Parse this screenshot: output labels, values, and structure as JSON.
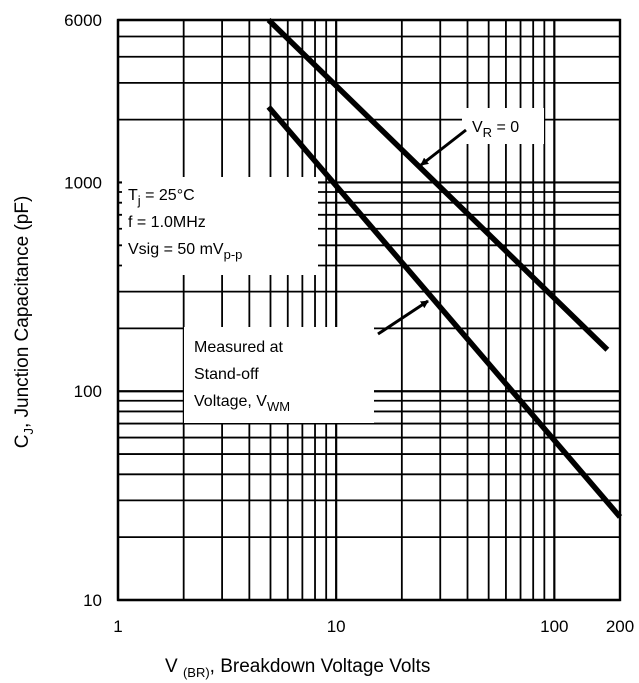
{
  "chart_data": {
    "type": "line",
    "x_scale": "log",
    "y_scale": "log",
    "xlim": [
      1,
      200
    ],
    "ylim": [
      10,
      6000
    ],
    "x_ticks": [
      {
        "value": 1,
        "label": "1"
      },
      {
        "value": 10,
        "label": "10"
      },
      {
        "value": 100,
        "label": "100"
      },
      {
        "value": 200,
        "label": "200"
      }
    ],
    "y_ticks": [
      {
        "value": 10,
        "label": "10"
      },
      {
        "value": 100,
        "label": "100"
      },
      {
        "value": 1000,
        "label": "1000"
      },
      {
        "value": 6000,
        "label": "6000"
      }
    ],
    "xlabel": {
      "main": "V ",
      "sub": "(BR)",
      "rest": ", Breakdown Voltage Volts"
    },
    "ylabel": {
      "main": "C",
      "sub": "J",
      "rest": ", Junction Capacitance (pF)"
    },
    "grid": true,
    "series": [
      {
        "x": [
          4.9,
          175
        ],
        "y": [
          6000,
          158
        ]
      },
      {
        "x": [
          4.9,
          200
        ],
        "y": [
          2300,
          25
        ]
      }
    ],
    "annotations": {
      "vr": {
        "main": "V",
        "sub": "R",
        "rest": " = 0"
      },
      "conditions": [
        {
          "main": "T",
          "sub": "j",
          "rest": " = 25°C"
        },
        {
          "main": "f = 1.0MHz",
          "sub": "",
          "rest": ""
        },
        {
          "main": "Vsig = 50 mV",
          "sub": "p-p",
          "rest": ""
        }
      ],
      "measured": [
        {
          "main": "Measured at",
          "sub": "",
          "rest": ""
        },
        {
          "main": "Stand-off",
          "sub": "",
          "rest": ""
        },
        {
          "main": "Voltage, V",
          "sub": "WM",
          "rest": ""
        }
      ]
    }
  }
}
